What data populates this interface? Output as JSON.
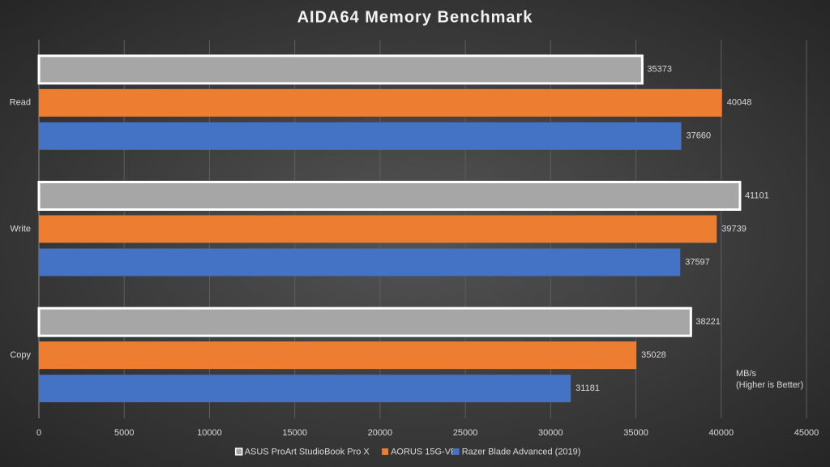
{
  "chart_data": {
    "type": "bar",
    "orientation": "horizontal",
    "title": "AIDA64  Memory Benchmark",
    "categories": [
      "Read",
      "Write",
      "Copy"
    ],
    "series": [
      {
        "name": "ASUS ProArt StudioBook Pro X",
        "color": "#a6a6a6",
        "values": [
          35373,
          41101,
          38221
        ]
      },
      {
        "name": "AORUS 15G-VB",
        "color": "#ed7d31",
        "values": [
          40048,
          39739,
          35028
        ]
      },
      {
        "name": "Razer Blade Advanced (2019)",
        "color": "#4472c4",
        "values": [
          37660,
          37597,
          31181
        ]
      }
    ],
    "xlim": [
      0,
      45000
    ],
    "xticks": [
      0,
      5000,
      10000,
      15000,
      20000,
      25000,
      30000,
      35000,
      40000,
      45000
    ],
    "grid": true,
    "legend": "bottom",
    "annotations": [
      "MB/s",
      "(Higher is Better)"
    ]
  }
}
